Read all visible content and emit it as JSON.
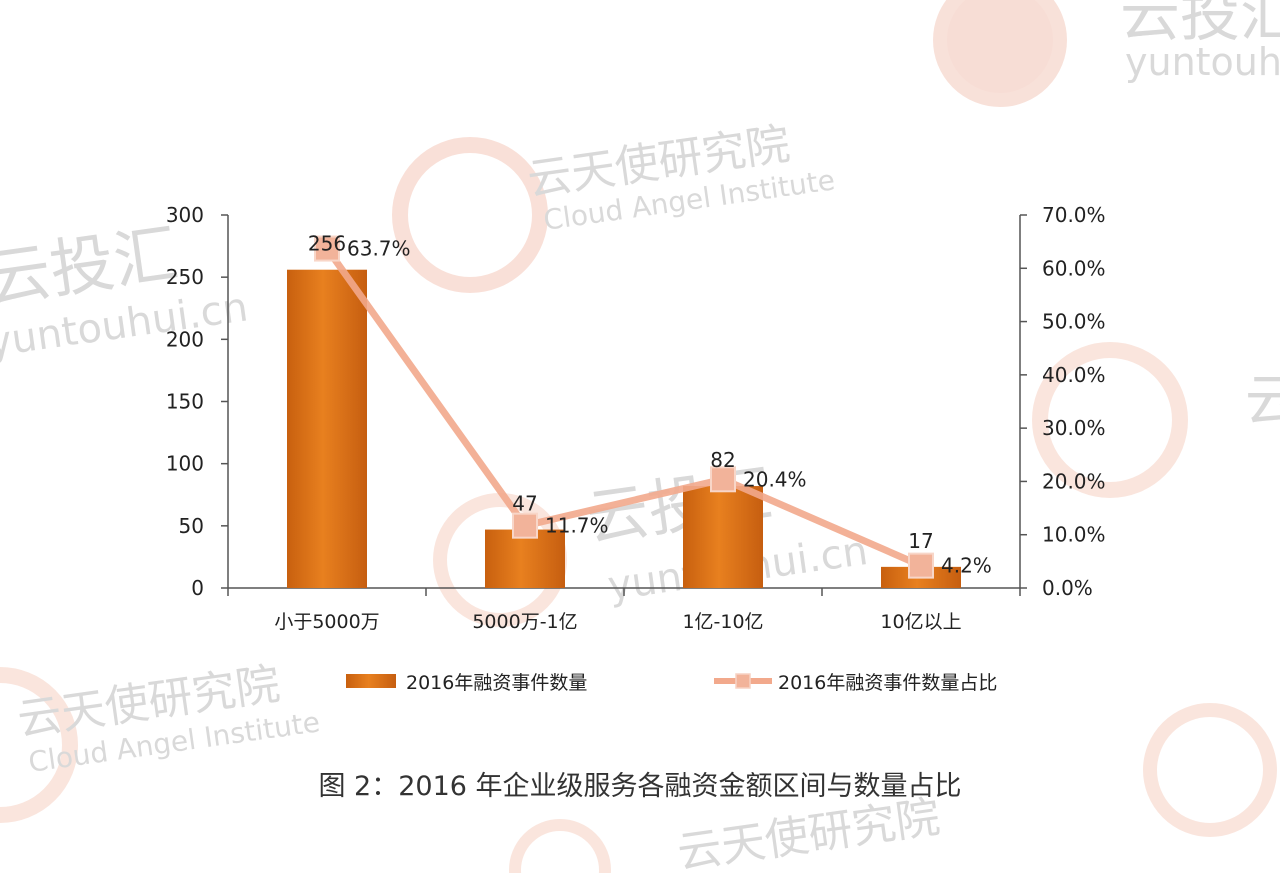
{
  "watermarks": {
    "cloud_angel_cn": "云天使研究院",
    "cloud_angel_en": "Cloud Angel Institute",
    "yuntouhui_cn": "云投汇",
    "yuntouhui_en": "yuntouhui.cn"
  },
  "caption": "图 2：2016 年企业级服务各融资金额区间与数量占比",
  "chart_data": {
    "type": "bar",
    "categories": [
      "小于5000万",
      "5000万-1亿",
      "1亿-10亿",
      "10亿以上"
    ],
    "series": [
      {
        "name": "2016年融资事件数量",
        "kind": "bar",
        "axis": "left",
        "values": [
          256,
          47,
          82,
          17
        ],
        "value_labels": [
          "256",
          "47",
          "82",
          "17"
        ]
      },
      {
        "name": "2016年融资事件数量占比",
        "kind": "line",
        "axis": "right",
        "values": [
          63.7,
          11.7,
          20.4,
          4.2
        ],
        "value_labels": [
          "63.7%",
          "11.7%",
          "20.4%",
          "4.2%"
        ]
      }
    ],
    "left_axis": {
      "min": 0,
      "max": 300,
      "ticks": [
        0,
        50,
        100,
        150,
        200,
        250,
        300
      ],
      "tick_labels": [
        "0",
        "50",
        "100",
        "150",
        "200",
        "250",
        "300"
      ]
    },
    "right_axis": {
      "min": 0,
      "max": 70,
      "ticks": [
        0,
        10,
        20,
        30,
        40,
        50,
        60,
        70
      ],
      "tick_labels": [
        "0.0%",
        "10.0%",
        "20.0%",
        "30.0%",
        "40.0%",
        "50.0%",
        "60.0%",
        "70.0%"
      ]
    },
    "grid": false,
    "legend_position": "bottom",
    "colors": {
      "bar": "#e0741b",
      "bar_dark": "#b9560d",
      "line": "#f2a98c",
      "marker": "#f2b39a",
      "axis": "#555555"
    }
  }
}
